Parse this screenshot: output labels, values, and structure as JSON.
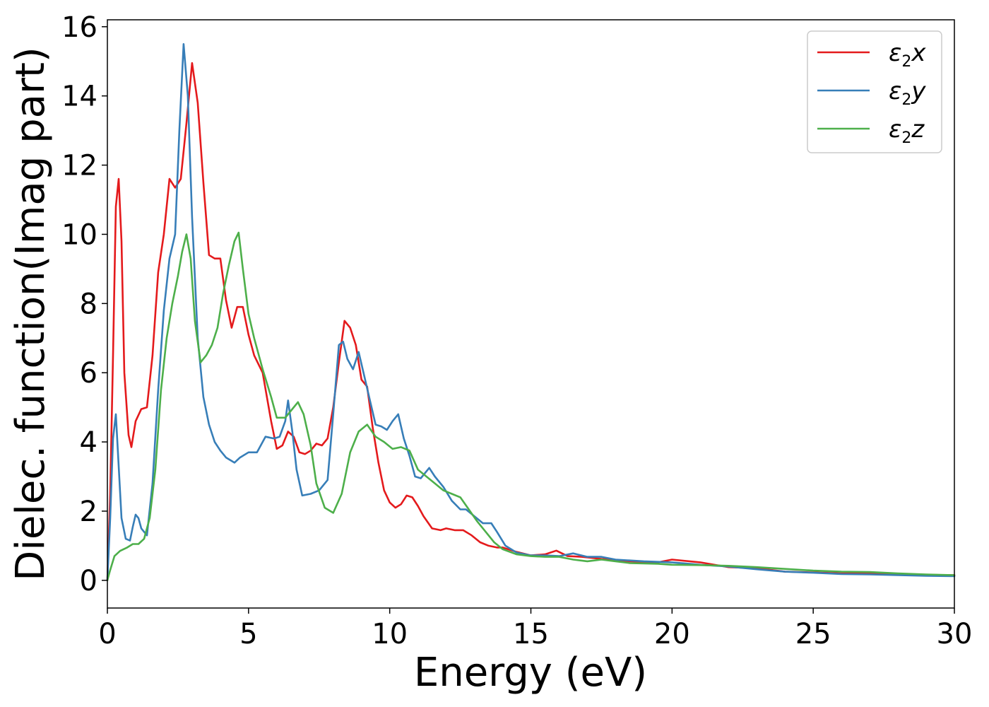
{
  "chart_data": {
    "type": "line",
    "title": "",
    "xlabel": "Energy (eV)",
    "ylabel": "Dielec. function(Imag part)",
    "xlim": [
      0,
      30
    ],
    "ylim": [
      -0.8,
      16.2
    ],
    "xticks": [
      "0",
      "5",
      "10",
      "15",
      "20",
      "25",
      "30"
    ],
    "yticks": [
      "0",
      "2",
      "4",
      "6",
      "8",
      "10",
      "12",
      "14",
      "16"
    ],
    "grid": false,
    "legend_position": "top-right",
    "series": [
      {
        "name": "ε2x",
        "legend_base": "ε",
        "legend_sub": "2",
        "legend_var": "x",
        "color": "#e41a1c",
        "points": [
          [
            0,
            0
          ],
          [
            0.1,
            2.5
          ],
          [
            0.2,
            6.5
          ],
          [
            0.3,
            10.8
          ],
          [
            0.4,
            11.6
          ],
          [
            0.5,
            9.8
          ],
          [
            0.6,
            6.0
          ],
          [
            0.75,
            4.2
          ],
          [
            0.85,
            3.85
          ],
          [
            1.0,
            4.6
          ],
          [
            1.2,
            4.95
          ],
          [
            1.4,
            5.0
          ],
          [
            1.6,
            6.5
          ],
          [
            1.8,
            8.9
          ],
          [
            2.0,
            10.0
          ],
          [
            2.2,
            11.6
          ],
          [
            2.4,
            11.35
          ],
          [
            2.6,
            11.6
          ],
          [
            2.8,
            13.2
          ],
          [
            3.0,
            14.95
          ],
          [
            3.2,
            13.8
          ],
          [
            3.4,
            11.5
          ],
          [
            3.6,
            9.4
          ],
          [
            3.8,
            9.3
          ],
          [
            4.0,
            9.3
          ],
          [
            4.2,
            8.1
          ],
          [
            4.4,
            7.3
          ],
          [
            4.6,
            7.9
          ],
          [
            4.8,
            7.9
          ],
          [
            5.0,
            7.1
          ],
          [
            5.2,
            6.5
          ],
          [
            5.5,
            6.0
          ],
          [
            5.8,
            4.6
          ],
          [
            6.0,
            3.8
          ],
          [
            6.2,
            3.9
          ],
          [
            6.4,
            4.3
          ],
          [
            6.6,
            4.15
          ],
          [
            6.8,
            3.7
          ],
          [
            7.0,
            3.65
          ],
          [
            7.2,
            3.75
          ],
          [
            7.4,
            3.95
          ],
          [
            7.6,
            3.9
          ],
          [
            7.8,
            4.1
          ],
          [
            8.0,
            5.0
          ],
          [
            8.2,
            6.3
          ],
          [
            8.4,
            7.5
          ],
          [
            8.6,
            7.3
          ],
          [
            8.8,
            6.8
          ],
          [
            9.0,
            5.8
          ],
          [
            9.2,
            5.6
          ],
          [
            9.4,
            4.4
          ],
          [
            9.6,
            3.4
          ],
          [
            9.8,
            2.6
          ],
          [
            10.0,
            2.25
          ],
          [
            10.2,
            2.1
          ],
          [
            10.4,
            2.2
          ],
          [
            10.6,
            2.45
          ],
          [
            10.8,
            2.4
          ],
          [
            11.0,
            2.15
          ],
          [
            11.2,
            1.85
          ],
          [
            11.5,
            1.5
          ],
          [
            11.8,
            1.45
          ],
          [
            12.0,
            1.5
          ],
          [
            12.3,
            1.45
          ],
          [
            12.6,
            1.45
          ],
          [
            12.9,
            1.3
          ],
          [
            13.2,
            1.1
          ],
          [
            13.5,
            1.0
          ],
          [
            13.8,
            0.95
          ],
          [
            14.0,
            0.95
          ],
          [
            14.5,
            0.82
          ],
          [
            15.0,
            0.72
          ],
          [
            15.5,
            0.75
          ],
          [
            15.9,
            0.86
          ],
          [
            16.3,
            0.7
          ],
          [
            16.8,
            0.68
          ],
          [
            17.5,
            0.62
          ],
          [
            18.5,
            0.55
          ],
          [
            19.5,
            0.52
          ],
          [
            20.0,
            0.6
          ],
          [
            21.0,
            0.52
          ],
          [
            22.0,
            0.38
          ],
          [
            23.0,
            0.35
          ],
          [
            24.0,
            0.25
          ],
          [
            25.0,
            0.23
          ],
          [
            26.0,
            0.2
          ],
          [
            27.0,
            0.2
          ],
          [
            28.0,
            0.18
          ],
          [
            29.0,
            0.16
          ],
          [
            30.0,
            0.15
          ]
        ]
      },
      {
        "name": "ε2y",
        "legend_base": "ε",
        "legend_sub": "2",
        "legend_var": "y",
        "color": "#377eb8",
        "points": [
          [
            0,
            0
          ],
          [
            0.1,
            1.8
          ],
          [
            0.2,
            4.1
          ],
          [
            0.3,
            4.8
          ],
          [
            0.4,
            3.3
          ],
          [
            0.5,
            1.8
          ],
          [
            0.65,
            1.2
          ],
          [
            0.8,
            1.15
          ],
          [
            0.9,
            1.55
          ],
          [
            1.0,
            1.9
          ],
          [
            1.1,
            1.8
          ],
          [
            1.2,
            1.5
          ],
          [
            1.4,
            1.3
          ],
          [
            1.6,
            2.8
          ],
          [
            1.8,
            5.5
          ],
          [
            2.0,
            7.8
          ],
          [
            2.2,
            9.3
          ],
          [
            2.4,
            10.0
          ],
          [
            2.55,
            13.0
          ],
          [
            2.7,
            15.5
          ],
          [
            2.85,
            14.0
          ],
          [
            3.0,
            10.5
          ],
          [
            3.2,
            7.0
          ],
          [
            3.4,
            5.3
          ],
          [
            3.6,
            4.5
          ],
          [
            3.8,
            4.0
          ],
          [
            4.0,
            3.75
          ],
          [
            4.2,
            3.55
          ],
          [
            4.5,
            3.4
          ],
          [
            4.7,
            3.55
          ],
          [
            5.0,
            3.7
          ],
          [
            5.3,
            3.7
          ],
          [
            5.6,
            4.15
          ],
          [
            5.9,
            4.1
          ],
          [
            6.1,
            4.15
          ],
          [
            6.3,
            4.6
          ],
          [
            6.4,
            5.2
          ],
          [
            6.55,
            4.3
          ],
          [
            6.7,
            3.2
          ],
          [
            6.9,
            2.45
          ],
          [
            7.2,
            2.5
          ],
          [
            7.5,
            2.6
          ],
          [
            7.8,
            2.9
          ],
          [
            8.0,
            4.8
          ],
          [
            8.2,
            6.8
          ],
          [
            8.35,
            6.9
          ],
          [
            8.5,
            6.4
          ],
          [
            8.7,
            6.1
          ],
          [
            8.9,
            6.6
          ],
          [
            9.1,
            5.9
          ],
          [
            9.3,
            5.2
          ],
          [
            9.5,
            4.5
          ],
          [
            9.7,
            4.45
          ],
          [
            9.9,
            4.35
          ],
          [
            10.1,
            4.6
          ],
          [
            10.3,
            4.8
          ],
          [
            10.5,
            4.1
          ],
          [
            10.7,
            3.6
          ],
          [
            10.9,
            3.0
          ],
          [
            11.1,
            2.95
          ],
          [
            11.4,
            3.25
          ],
          [
            11.6,
            3.0
          ],
          [
            11.9,
            2.7
          ],
          [
            12.2,
            2.3
          ],
          [
            12.5,
            2.05
          ],
          [
            12.7,
            2.05
          ],
          [
            13.0,
            1.85
          ],
          [
            13.3,
            1.65
          ],
          [
            13.6,
            1.65
          ],
          [
            13.8,
            1.4
          ],
          [
            14.1,
            1.0
          ],
          [
            14.5,
            0.8
          ],
          [
            15.0,
            0.72
          ],
          [
            15.5,
            0.72
          ],
          [
            16.0,
            0.7
          ],
          [
            16.5,
            0.78
          ],
          [
            17.0,
            0.68
          ],
          [
            17.5,
            0.68
          ],
          [
            18.0,
            0.6
          ],
          [
            19.0,
            0.55
          ],
          [
            20.0,
            0.52
          ],
          [
            21.0,
            0.45
          ],
          [
            22.0,
            0.4
          ],
          [
            23.0,
            0.32
          ],
          [
            24.0,
            0.25
          ],
          [
            25.0,
            0.22
          ],
          [
            26.0,
            0.18
          ],
          [
            27.0,
            0.17
          ],
          [
            28.0,
            0.15
          ],
          [
            29.0,
            0.13
          ],
          [
            30.0,
            0.12
          ]
        ]
      },
      {
        "name": "ε2z",
        "legend_base": "ε",
        "legend_sub": "2",
        "legend_var": "z",
        "color": "#4daf4a",
        "points": [
          [
            0,
            0
          ],
          [
            0.1,
            0.3
          ],
          [
            0.25,
            0.7
          ],
          [
            0.45,
            0.85
          ],
          [
            0.7,
            0.95
          ],
          [
            0.9,
            1.05
          ],
          [
            1.1,
            1.05
          ],
          [
            1.3,
            1.2
          ],
          [
            1.5,
            1.8
          ],
          [
            1.7,
            3.2
          ],
          [
            1.9,
            5.5
          ],
          [
            2.1,
            7.0
          ],
          [
            2.3,
            8.0
          ],
          [
            2.5,
            8.8
          ],
          [
            2.65,
            9.5
          ],
          [
            2.8,
            10.0
          ],
          [
            2.95,
            9.3
          ],
          [
            3.1,
            7.5
          ],
          [
            3.3,
            6.3
          ],
          [
            3.5,
            6.5
          ],
          [
            3.7,
            6.8
          ],
          [
            3.9,
            7.3
          ],
          [
            4.1,
            8.3
          ],
          [
            4.3,
            9.1
          ],
          [
            4.5,
            9.8
          ],
          [
            4.65,
            10.05
          ],
          [
            4.8,
            9.0
          ],
          [
            5.0,
            7.7
          ],
          [
            5.2,
            7.0
          ],
          [
            5.5,
            6.1
          ],
          [
            5.8,
            5.3
          ],
          [
            6.0,
            4.7
          ],
          [
            6.3,
            4.7
          ],
          [
            6.5,
            4.9
          ],
          [
            6.75,
            5.15
          ],
          [
            6.95,
            4.8
          ],
          [
            7.2,
            3.9
          ],
          [
            7.4,
            2.8
          ],
          [
            7.7,
            2.1
          ],
          [
            8.0,
            1.95
          ],
          [
            8.3,
            2.5
          ],
          [
            8.6,
            3.7
          ],
          [
            8.9,
            4.3
          ],
          [
            9.2,
            4.5
          ],
          [
            9.5,
            4.15
          ],
          [
            9.8,
            4.0
          ],
          [
            10.1,
            3.8
          ],
          [
            10.4,
            3.85
          ],
          [
            10.7,
            3.75
          ],
          [
            11.0,
            3.2
          ],
          [
            11.3,
            3.0
          ],
          [
            11.6,
            2.8
          ],
          [
            11.9,
            2.6
          ],
          [
            12.2,
            2.5
          ],
          [
            12.5,
            2.4
          ],
          [
            12.8,
            2.05
          ],
          [
            13.1,
            1.7
          ],
          [
            13.4,
            1.4
          ],
          [
            13.7,
            1.1
          ],
          [
            14.0,
            0.9
          ],
          [
            14.5,
            0.75
          ],
          [
            15.0,
            0.7
          ],
          [
            15.5,
            0.68
          ],
          [
            16.0,
            0.68
          ],
          [
            16.5,
            0.6
          ],
          [
            17.0,
            0.55
          ],
          [
            17.5,
            0.6
          ],
          [
            18.0,
            0.55
          ],
          [
            18.5,
            0.5
          ],
          [
            19.5,
            0.48
          ],
          [
            20.0,
            0.45
          ],
          [
            21.0,
            0.44
          ],
          [
            22.0,
            0.42
          ],
          [
            23.0,
            0.38
          ],
          [
            24.0,
            0.33
          ],
          [
            25.0,
            0.28
          ],
          [
            26.0,
            0.25
          ],
          [
            27.0,
            0.24
          ],
          [
            28.0,
            0.2
          ],
          [
            29.0,
            0.17
          ],
          [
            30.0,
            0.15
          ]
        ]
      }
    ]
  }
}
